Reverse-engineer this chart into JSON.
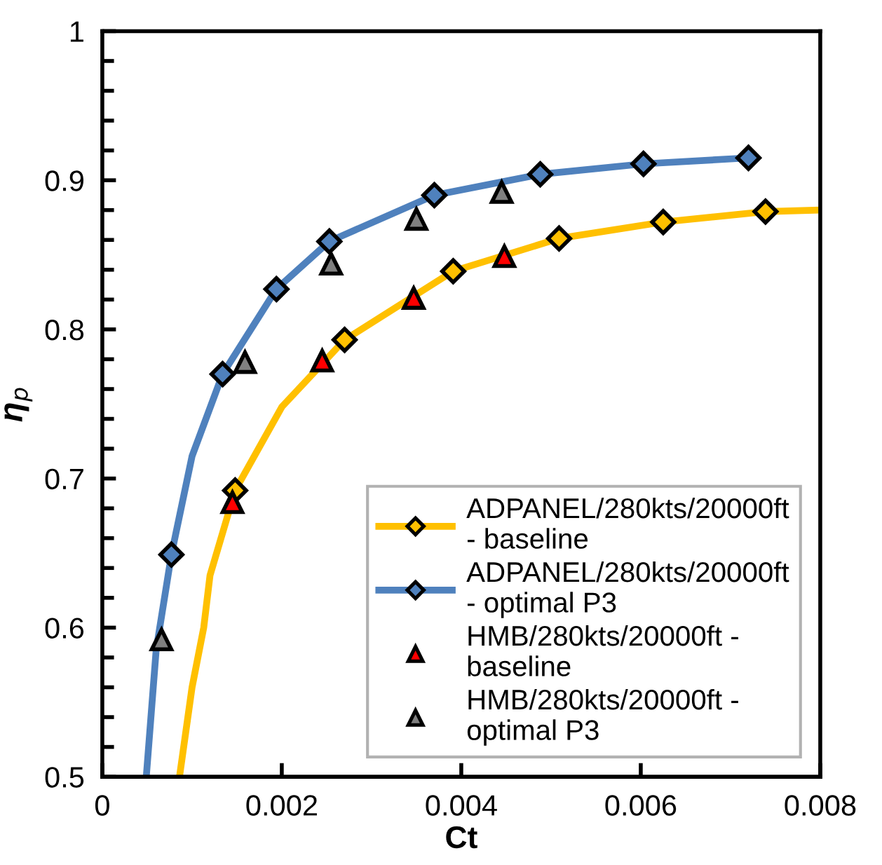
{
  "chart_data": {
    "type": "line",
    "xlabel": "Ct",
    "ylabel": "η$_{p}$",
    "xlim": [
      0,
      0.008
    ],
    "ylim": [
      0.5,
      1
    ],
    "xticks": [
      0,
      0.002,
      0.004,
      0.006,
      0.008
    ],
    "yticks": [
      0.5,
      0.6,
      0.7,
      0.8,
      0.9,
      1
    ],
    "grid": false,
    "legend": "bottom right",
    "series": [
      {
        "color": "#ffc000",
        "x": [
          0.00086,
          0.001,
          0.00113,
          0.0012,
          0.00148,
          0.002,
          0.0027,
          0.00391,
          0.00509,
          0.00625,
          0.00739,
          0.008
        ],
        "values": [
          0.5,
          0.56,
          0.6,
          0.635,
          0.692,
          0.748,
          0.793,
          0.839,
          0.861,
          0.872,
          0.879,
          0.88
        ]
      },
      {
        "color": "#4f81bd",
        "x": [
          0.00049,
          0.0006,
          0.00077,
          0.001,
          0.00134,
          0.00194,
          0.00253,
          0.0037,
          0.00488,
          0.00603,
          0.0072
        ],
        "values": [
          0.5,
          0.585,
          0.649,
          0.715,
          0.77,
          0.827,
          0.859,
          0.89,
          0.904,
          0.911,
          0.915
        ]
      },
      {
        "type": "scatter",
        "name": "ADPANEL/280kts/20000ft\n- baseline",
        "color": "#ffc000",
        "marker": "diamond",
        "x": [
          0.00148,
          0.0027,
          0.00391,
          0.00509,
          0.00625,
          0.00739
        ],
        "values": [
          0.692,
          0.793,
          0.839,
          0.861,
          0.872,
          0.879
        ]
      },
      {
        "type": "scatter",
        "name": "ADPANEL/280kts/20000ft\n- optimal P3",
        "color": "#4f81bd",
        "marker": "diamond",
        "x": [
          0.00077,
          0.00134,
          0.00194,
          0.00253,
          0.0037,
          0.00488,
          0.00603,
          0.0072
        ],
        "values": [
          0.649,
          0.77,
          0.827,
          0.859,
          0.89,
          0.904,
          0.911,
          0.915
        ]
      },
      {
        "type": "scatter",
        "name": "HMB/280kts/20000ft -\nbaseline",
        "color": "#ff0000",
        "marker": "triangle",
        "x": [
          0.00145,
          0.00245,
          0.00347,
          0.00448
        ],
        "values": [
          0.684,
          0.779,
          0.821,
          0.849
        ]
      },
      {
        "type": "scatter",
        "name": "HMB/280kts/20000ft -\noptimal P3",
        "color": "#808080",
        "marker": "triangle",
        "x": [
          0.00066,
          0.00159,
          0.00255,
          0.0035,
          0.00445
        ],
        "values": [
          0.592,
          0.778,
          0.844,
          0.874,
          0.892
        ]
      }
    ]
  }
}
